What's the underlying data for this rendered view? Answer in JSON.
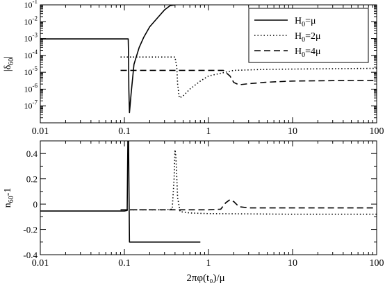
{
  "figure": {
    "xlabel": "2πφ(t₀)/μ"
  },
  "chart_data": [
    {
      "type": "line",
      "id": "top",
      "ylabel_main": "|δ",
      "ylabel_sub": "60",
      "ylabel_end": "|",
      "x_scale": "log",
      "y_scale": "log",
      "xlim": [
        0.01,
        100
      ],
      "ylim": [
        1e-08,
        0.1
      ],
      "x_ticks": [
        {
          "v": 0.01,
          "label": "0.01"
        },
        {
          "v": 0.1,
          "label": "0.1"
        },
        {
          "v": 1,
          "label": "1"
        },
        {
          "v": 10,
          "label": "10"
        },
        {
          "v": 100,
          "label": "100"
        }
      ],
      "y_ticks": [
        {
          "v": 1e-07,
          "base": "10",
          "exp": "-7"
        },
        {
          "v": 1e-06,
          "base": "10",
          "exp": "-6"
        },
        {
          "v": 1e-05,
          "base": "10",
          "exp": "-5"
        },
        {
          "v": 0.0001,
          "base": "10",
          "exp": "-4"
        },
        {
          "v": 0.001,
          "base": "10",
          "exp": "-3"
        },
        {
          "v": 0.01,
          "base": "10",
          "exp": "-2"
        },
        {
          "v": 0.1,
          "base": "10",
          "exp": "-1"
        }
      ],
      "legend": {
        "placement": "top-right",
        "entries": [
          {
            "main": "H",
            "sub": "0",
            "rest": "=μ",
            "dash": "solid"
          },
          {
            "main": "H",
            "sub": "0",
            "rest": "=2μ",
            "dash": "dotted"
          },
          {
            "main": "H",
            "sub": "0",
            "rest": "=4μ",
            "dash": "dashed"
          }
        ]
      },
      "series": [
        {
          "dash": "solid",
          "points": [
            [
              0.01,
              0.00095
            ],
            [
              0.05,
              0.00095
            ],
            [
              0.1,
              0.00095
            ],
            [
              0.111,
              0.00095
            ],
            [
              0.112,
              0.0001
            ],
            [
              0.113,
              1e-06
            ],
            [
              0.115,
              4e-08
            ],
            [
              0.12,
              5e-07
            ],
            [
              0.13,
              3e-05
            ],
            [
              0.15,
              0.0003
            ],
            [
              0.17,
              0.0012
            ],
            [
              0.2,
              0.005
            ],
            [
              0.25,
              0.018
            ],
            [
              0.3,
              0.05
            ],
            [
              0.35,
              0.09
            ],
            [
              0.4,
              0.1
            ]
          ]
        },
        {
          "dash": "dotted",
          "points": [
            [
              0.09,
              8e-05
            ],
            [
              0.3,
              8e-05
            ],
            [
              0.4,
              8e-05
            ],
            [
              0.42,
              2e-05
            ],
            [
              0.43,
              2e-06
            ],
            [
              0.45,
              3e-07
            ],
            [
              0.5,
              4e-07
            ],
            [
              0.6,
              1e-06
            ],
            [
              0.8,
              3e-06
            ],
            [
              1,
              6e-06
            ],
            [
              2,
              1.3e-05
            ],
            [
              5,
              1.5e-05
            ],
            [
              20,
              1.6e-05
            ],
            [
              100,
              1.7e-05
            ]
          ]
        },
        {
          "dash": "dashed",
          "points": [
            [
              0.09,
              1.3e-05
            ],
            [
              1,
              1.3e-05
            ],
            [
              1.5,
              1.3e-05
            ],
            [
              1.8,
              6e-06
            ],
            [
              2,
              2.5e-06
            ],
            [
              2.3,
              1.8e-06
            ],
            [
              3,
              2.1e-06
            ],
            [
              5,
              2.6e-06
            ],
            [
              10,
              3e-06
            ],
            [
              30,
              3.2e-06
            ],
            [
              100,
              3.3e-06
            ]
          ]
        }
      ]
    },
    {
      "type": "line",
      "id": "bottom",
      "ylabel_main": "n",
      "ylabel_sub": "60",
      "ylabel_end": "-1",
      "x_scale": "log",
      "y_scale": "linear",
      "xlim": [
        0.01,
        100
      ],
      "ylim": [
        -0.4,
        0.5
      ],
      "x_ticks": [
        {
          "v": 0.01,
          "label": "0.01"
        },
        {
          "v": 0.1,
          "label": "0.1"
        },
        {
          "v": 1,
          "label": "1"
        },
        {
          "v": 10,
          "label": "10"
        },
        {
          "v": 100,
          "label": "100"
        }
      ],
      "y_ticks": [
        {
          "v": -0.4,
          "label": "-0.4"
        },
        {
          "v": -0.2,
          "label": "-0.2"
        },
        {
          "v": 0,
          "label": "0"
        },
        {
          "v": 0.2,
          "label": "0.2"
        },
        {
          "v": 0.4,
          "label": "0.4"
        }
      ],
      "series": [
        {
          "dash": "solid",
          "points": [
            [
              0.01,
              -0.055
            ],
            [
              0.05,
              -0.055
            ],
            [
              0.1,
              -0.055
            ],
            [
              0.108,
              -0.05
            ],
            [
              0.11,
              0.5
            ],
            [
              0.112,
              0.5
            ],
            [
              0.115,
              -0.3
            ],
            [
              0.13,
              -0.3
            ],
            [
              0.3,
              -0.3
            ],
            [
              0.5,
              -0.3
            ],
            [
              0.8,
              -0.3
            ]
          ]
        },
        {
          "dash": "dotted",
          "points": [
            [
              0.09,
              -0.045
            ],
            [
              0.3,
              -0.045
            ],
            [
              0.37,
              -0.04
            ],
            [
              0.39,
              0.2
            ],
            [
              0.4,
              0.43
            ],
            [
              0.41,
              0.38
            ],
            [
              0.43,
              0.05
            ],
            [
              0.46,
              -0.06
            ],
            [
              0.6,
              -0.07
            ],
            [
              1,
              -0.075
            ],
            [
              10,
              -0.08
            ],
            [
              100,
              -0.08
            ]
          ]
        },
        {
          "dash": "dashed",
          "points": [
            [
              0.09,
              -0.045
            ],
            [
              1,
              -0.045
            ],
            [
              1.4,
              -0.04
            ],
            [
              1.6,
              0.01
            ],
            [
              1.8,
              0.035
            ],
            [
              2,
              0.02
            ],
            [
              2.3,
              -0.02
            ],
            [
              3,
              -0.03
            ],
            [
              10,
              -0.03
            ],
            [
              100,
              -0.03
            ]
          ]
        }
      ]
    }
  ]
}
